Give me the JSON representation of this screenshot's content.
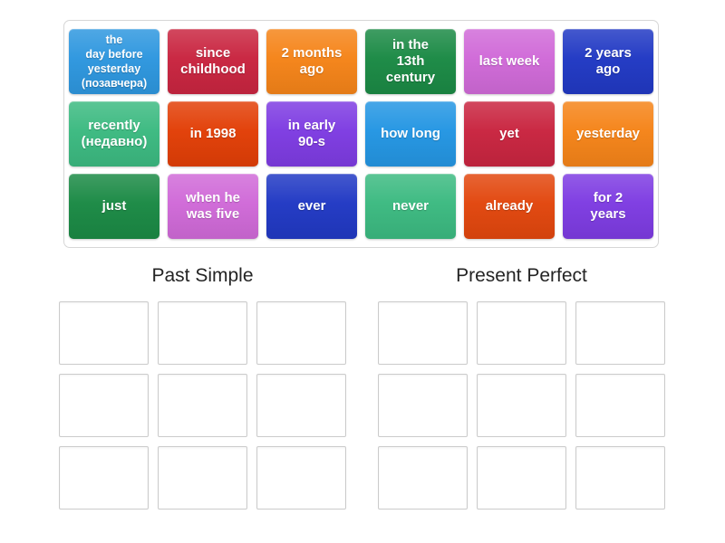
{
  "board": {
    "tiles": [
      {
        "label": "the\nday before\nyesterday\n(позавчера)",
        "color": "#2e97df"
      },
      {
        "label": "since\nchildhood",
        "color": "#c92540"
      },
      {
        "label": "2 months\nago",
        "color": "#f58419"
      },
      {
        "label": "in the\n13th\ncentury",
        "color": "#1b8a45"
      },
      {
        "label": "last week",
        "color": "#d06ad8"
      },
      {
        "label": "2 years\nago",
        "color": "#2139c4"
      },
      {
        "label": "recently\n(недавно)",
        "color": "#3cba81"
      },
      {
        "label": "in 1998",
        "color": "#e23f07"
      },
      {
        "label": "in early\n90-s",
        "color": "#7e3ce2"
      },
      {
        "label": "how long",
        "color": "#2496e3"
      },
      {
        "label": "yet",
        "color": "#c92540"
      },
      {
        "label": "yesterday",
        "color": "#f58419"
      },
      {
        "label": "just",
        "color": "#1b8a45"
      },
      {
        "label": "when he\nwas five",
        "color": "#d06ad8"
      },
      {
        "label": "ever",
        "color": "#2139c4"
      },
      {
        "label": "never",
        "color": "#3cba81"
      },
      {
        "label": "already",
        "color": "#e2470e"
      },
      {
        "label": "for 2\nyears",
        "color": "#7e3ce2"
      }
    ]
  },
  "groups": [
    {
      "title": "Past Simple"
    },
    {
      "title": "Present Perfect"
    }
  ]
}
